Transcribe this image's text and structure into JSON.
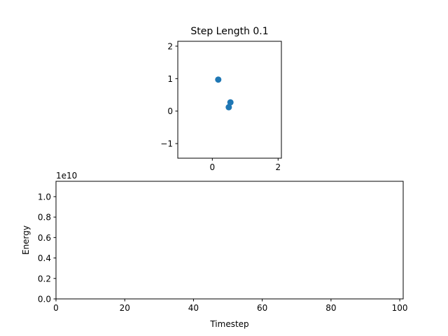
{
  "chart_data": [
    {
      "type": "scatter",
      "title": "Step Length 0.1",
      "xlabel": "",
      "ylabel": "",
      "xlim": [
        -1.05,
        2.1
      ],
      "ylim": [
        -1.45,
        2.15
      ],
      "xticks": [
        0,
        2
      ],
      "xtick_labels": [
        "0",
        "2"
      ],
      "yticks": [
        -1,
        0,
        1,
        2
      ],
      "ytick_labels": [
        "−1",
        "0",
        "1",
        "2"
      ],
      "points": [
        {
          "x": 0.18,
          "y": 0.97
        },
        {
          "x": 0.55,
          "y": 0.27
        },
        {
          "x": 0.5,
          "y": 0.12
        }
      ],
      "color": "#1f77b4",
      "grid": false
    },
    {
      "type": "line",
      "title": "",
      "xlabel": "Timestep",
      "ylabel": "Energy",
      "offset_text": "1e10",
      "xlim": [
        0,
        101
      ],
      "ylim": [
        0,
        1.15
      ],
      "xticks": [
        0,
        20,
        40,
        60,
        80,
        100
      ],
      "xtick_labels": [
        "0",
        "20",
        "40",
        "60",
        "80",
        "100"
      ],
      "yticks": [
        0.0,
        0.2,
        0.4,
        0.6,
        0.8,
        1.0
      ],
      "ytick_labels": [
        "0.0",
        "0.2",
        "0.4",
        "0.6",
        "0.8",
        "1.0"
      ],
      "series": [],
      "grid": false
    }
  ]
}
